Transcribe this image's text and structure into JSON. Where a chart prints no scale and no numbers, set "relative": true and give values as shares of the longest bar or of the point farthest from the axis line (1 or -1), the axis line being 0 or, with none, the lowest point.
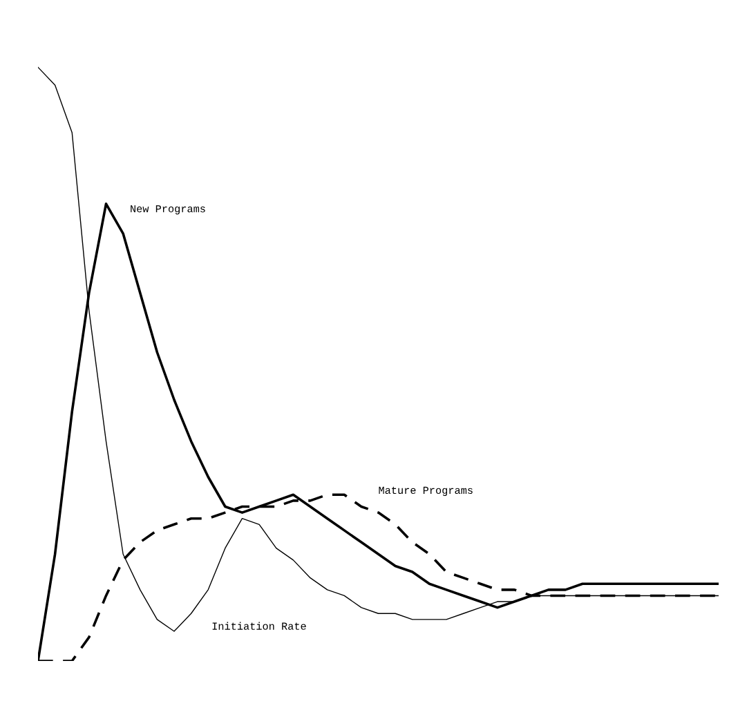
{
  "chart_data": {
    "type": "line",
    "relative": true,
    "grid": false,
    "legend": false,
    "categories": [
      null,
      null,
      null,
      null,
      null,
      null,
      null,
      null,
      null,
      null,
      null,
      null,
      null,
      null,
      null,
      null,
      null,
      null,
      null,
      null,
      null,
      null,
      null,
      null,
      null,
      null,
      null,
      null,
      null,
      null,
      null,
      null,
      null,
      null,
      null,
      null,
      null,
      null,
      null,
      null,
      null
    ],
    "series": [
      {
        "name": "Initiation Rate",
        "color": "#000000",
        "line_style": "solid",
        "values": [
          1.0,
          0.97,
          0.89,
          0.59,
          0.37,
          0.18,
          0.12,
          0.07,
          0.05,
          0.08,
          0.12,
          0.19,
          0.24,
          0.23,
          0.19,
          0.17,
          0.14,
          0.12,
          0.11,
          0.09,
          0.08,
          0.08,
          0.07,
          0.07,
          0.07,
          0.08,
          0.09,
          0.1,
          0.1,
          0.11,
          0.11,
          0.11,
          0.11,
          0.11,
          0.11,
          0.11,
          0.11,
          0.11,
          0.11,
          0.11,
          0.11
        ]
      },
      {
        "name": "New Programs",
        "color": "#000000",
        "line_style": "solid",
        "values": [
          0.0,
          0.18,
          0.42,
          0.62,
          0.77,
          0.72,
          0.62,
          0.52,
          0.44,
          0.37,
          0.31,
          0.26,
          0.25,
          0.26,
          0.27,
          0.28,
          0.26,
          0.24,
          0.22,
          0.2,
          0.18,
          0.16,
          0.15,
          0.13,
          0.12,
          0.11,
          0.1,
          0.09,
          0.1,
          0.11,
          0.12,
          0.12,
          0.13,
          0.13,
          0.13,
          0.13,
          0.13,
          0.13,
          0.13,
          0.13,
          0.13
        ]
      },
      {
        "name": "Mature Programs",
        "color": "#000000",
        "line_style": "dashed",
        "values": [
          0.0,
          0.0,
          0.0,
          0.04,
          0.11,
          0.17,
          0.2,
          0.22,
          0.23,
          0.24,
          0.24,
          0.25,
          0.26,
          0.26,
          0.26,
          0.27,
          0.27,
          0.28,
          0.28,
          0.26,
          0.25,
          0.23,
          0.2,
          0.18,
          0.15,
          0.14,
          0.13,
          0.12,
          0.12,
          0.11,
          0.11,
          0.11,
          0.11,
          0.11,
          0.11,
          0.11,
          0.11,
          0.11,
          0.11,
          0.11,
          0.11
        ]
      }
    ]
  }
}
